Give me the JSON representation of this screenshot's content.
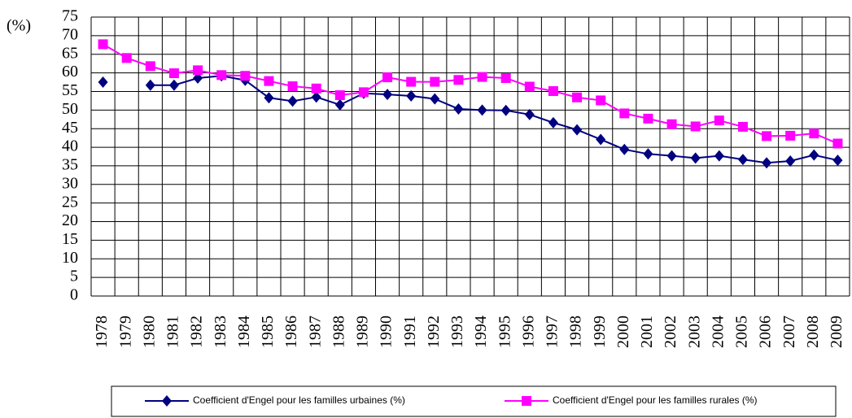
{
  "chart_data": {
    "type": "line",
    "ylabel": "(%)",
    "categories": [
      "1978",
      "1979",
      "1980",
      "1981",
      "1982",
      "1983",
      "1984",
      "1985",
      "1986",
      "1987",
      "1988",
      "1989",
      "1990",
      "1991",
      "1992",
      "1993",
      "1994",
      "1995",
      "1996",
      "1997",
      "1998",
      "1999",
      "2000",
      "2001",
      "2002",
      "2003",
      "2004",
      "2005",
      "2006",
      "2007",
      "2008",
      "2009"
    ],
    "series": [
      {
        "name": "Coefficient d'Engel pour les familles urbaines (%)",
        "color": "#000080",
        "marker": "diamond",
        "values": [
          57.5,
          null,
          56.7,
          56.7,
          58.6,
          59.2,
          58.0,
          53.3,
          52.4,
          53.5,
          51.4,
          54.5,
          54.2,
          53.8,
          53.0,
          50.3,
          50.0,
          49.9,
          48.8,
          46.6,
          44.7,
          42.1,
          39.4,
          38.2,
          37.7,
          37.1,
          37.7,
          36.7,
          35.8,
          36.3,
          37.9,
          36.5
        ]
      },
      {
        "name": "Coefficient d'Engel pour les familles rurales (%)",
        "color": "#ff00ff",
        "marker": "square",
        "values": [
          67.7,
          64.0,
          61.8,
          59.9,
          60.7,
          59.4,
          59.2,
          57.8,
          56.4,
          55.8,
          54.0,
          54.8,
          58.8,
          57.6,
          57.6,
          58.1,
          58.9,
          58.6,
          56.3,
          55.1,
          53.4,
          52.6,
          49.1,
          47.7,
          46.2,
          45.6,
          47.2,
          45.5,
          43.0,
          43.1,
          43.7,
          41.0
        ]
      }
    ],
    "ylim": [
      0,
      75
    ],
    "yticks": [
      0,
      5,
      10,
      15,
      20,
      25,
      30,
      35,
      40,
      45,
      50,
      55,
      60,
      65,
      70,
      75
    ],
    "grid": true,
    "legend": "bottom"
  }
}
